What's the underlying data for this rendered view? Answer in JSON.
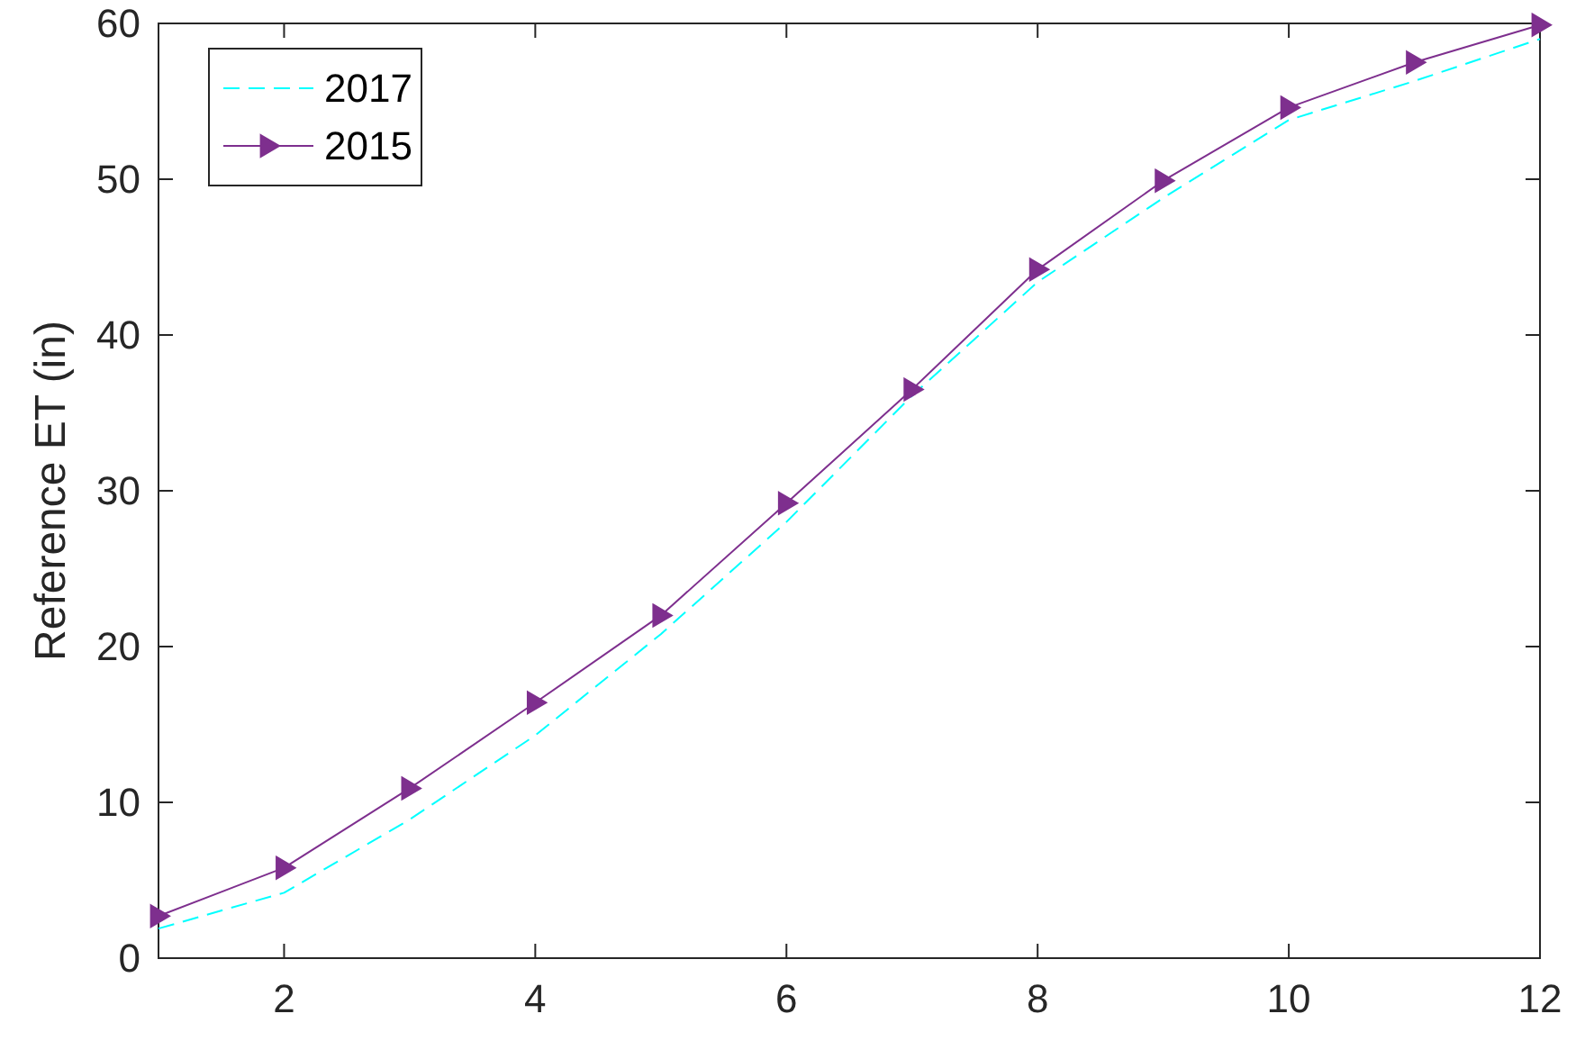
{
  "chart_data": {
    "type": "line",
    "ylabel": "Reference ET (in)",
    "x": [
      1,
      2,
      3,
      4,
      5,
      6,
      7,
      8,
      9,
      10,
      11,
      12
    ],
    "xlim": [
      1,
      12
    ],
    "xticks": [
      2,
      4,
      6,
      8,
      10,
      12
    ],
    "ylim": [
      0,
      60
    ],
    "yticks": [
      0,
      10,
      20,
      30,
      40,
      50,
      60
    ],
    "grid": false,
    "legend": "top left",
    "series": [
      {
        "name": "2017",
        "color": "#00ffff",
        "line_style": "dashed",
        "marker": "none",
        "values": [
          1.9,
          4.2,
          8.9,
          14.3,
          20.8,
          28.0,
          36.1,
          43.4,
          48.8,
          53.8,
          56.3,
          59.0
        ]
      },
      {
        "name": "2015",
        "color": "#7e2f8e",
        "line_style": "solid",
        "marker": "triangle",
        "values": [
          2.7,
          5.8,
          10.9,
          16.4,
          22.0,
          29.2,
          36.5,
          44.2,
          49.9,
          54.6,
          57.5,
          59.9
        ]
      }
    ]
  }
}
